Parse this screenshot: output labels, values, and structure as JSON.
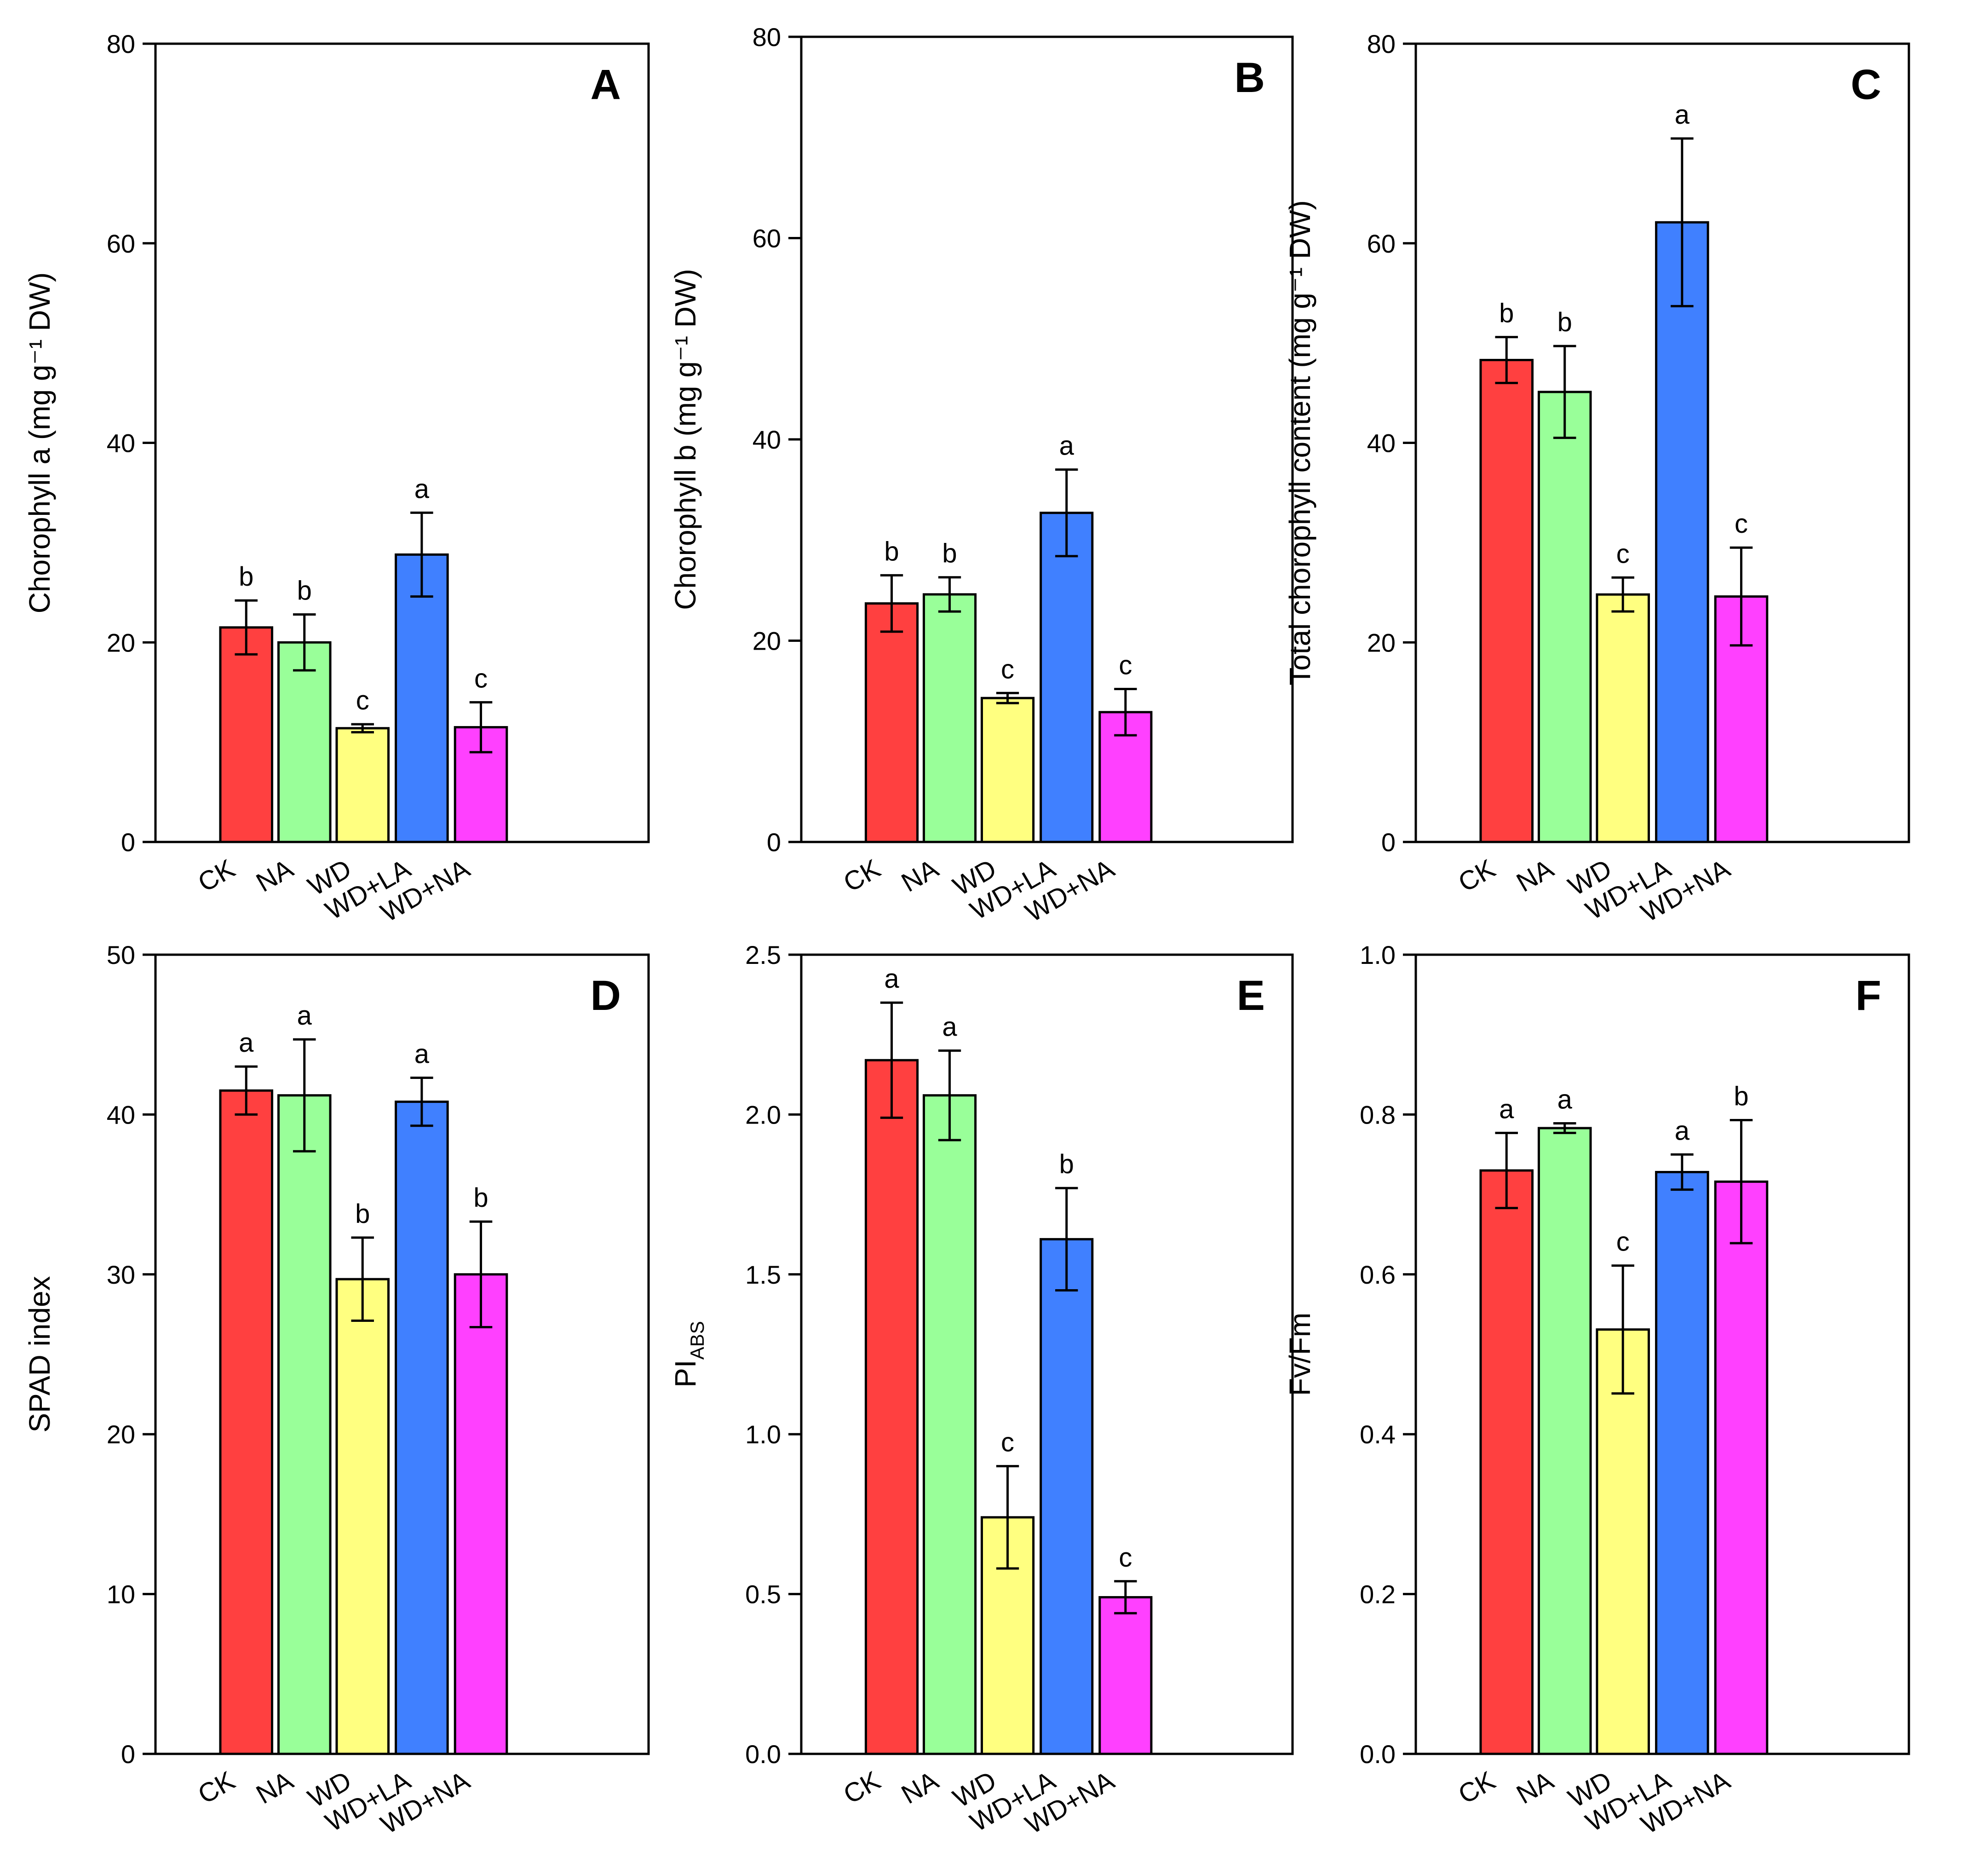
{
  "chart_data": [
    {
      "panel": "A",
      "type": "bar",
      "title": "",
      "xlabel": "",
      "ylabel": "Chorophyll a (mg g⁻¹ DW)",
      "ylim": [
        0,
        80
      ],
      "yticks": [
        "0",
        "20",
        "40",
        "60",
        "80"
      ],
      "categories": [
        "CK",
        "NA",
        "WD",
        "WD+LA",
        "WD+NA"
      ],
      "values": [
        21.5,
        20.0,
        11.4,
        28.8,
        11.5
      ],
      "errors": [
        2.7,
        2.8,
        0.4,
        4.2,
        2.5
      ],
      "letters": [
        "b",
        "b",
        "c",
        "a",
        "c"
      ],
      "grid": false
    },
    {
      "panel": "B",
      "type": "bar",
      "title": "",
      "xlabel": "",
      "ylabel": "Chorophyll b (mg g⁻¹ DW)",
      "ylim": [
        0,
        80
      ],
      "yticks": [
        "0",
        "20",
        "40",
        "60",
        "80"
      ],
      "categories": [
        "CK",
        "NA",
        "WD",
        "WD+LA",
        "WD+NA"
      ],
      "values": [
        23.7,
        24.6,
        14.3,
        32.7,
        12.9
      ],
      "errors": [
        2.8,
        1.7,
        0.5,
        4.3,
        2.3
      ],
      "letters": [
        "b",
        "b",
        "c",
        "a",
        "c"
      ],
      "grid": false
    },
    {
      "panel": "C",
      "type": "bar",
      "title": "",
      "xlabel": "",
      "ylabel": "Total chorophyll content (mg g⁻¹ DW)",
      "ylim": [
        0,
        80
      ],
      "yticks": [
        "0",
        "20",
        "40",
        "60",
        "80"
      ],
      "categories": [
        "CK",
        "NA",
        "WD",
        "WD+LA",
        "WD+NA"
      ],
      "values": [
        48.3,
        45.1,
        24.8,
        62.1,
        24.6
      ],
      "errors": [
        2.3,
        4.6,
        1.7,
        8.4,
        4.9
      ],
      "letters": [
        "b",
        "b",
        "c",
        "a",
        "c"
      ],
      "grid": false
    },
    {
      "panel": "D",
      "type": "bar",
      "title": "",
      "xlabel": "",
      "ylabel": "SPAD index",
      "ylim": [
        0,
        50
      ],
      "yticks": [
        "0",
        "10",
        "20",
        "30",
        "40",
        "50"
      ],
      "categories": [
        "CK",
        "NA",
        "WD",
        "WD+LA",
        "WD+NA"
      ],
      "values": [
        41.5,
        41.2,
        29.7,
        40.8,
        30.0
      ],
      "errors": [
        1.5,
        3.5,
        2.6,
        1.5,
        3.3
      ],
      "letters": [
        "a",
        "a",
        "b",
        "a",
        "b"
      ],
      "grid": false
    },
    {
      "panel": "E",
      "type": "bar",
      "title": "",
      "xlabel": "",
      "ylabel": "PI",
      "ylabel_sub": "ABS",
      "ylim": [
        0,
        2.5
      ],
      "yticks": [
        "0.0",
        "0.5",
        "1.0",
        "1.5",
        "2.0",
        "2.5"
      ],
      "categories": [
        "CK",
        "NA",
        "WD",
        "WD+LA",
        "WD+NA"
      ],
      "values": [
        2.17,
        2.06,
        0.74,
        1.61,
        0.49
      ],
      "errors": [
        0.18,
        0.14,
        0.16,
        0.16,
        0.05
      ],
      "letters": [
        "a",
        "a",
        "c",
        "b",
        "c"
      ],
      "grid": false
    },
    {
      "panel": "F",
      "type": "bar",
      "title": "",
      "xlabel": "",
      "ylabel": "Fv/Fm",
      "ylim": [
        0,
        1.0
      ],
      "yticks": [
        "0.0",
        "0.2",
        "0.4",
        "0.6",
        "0.8",
        "1.0"
      ],
      "categories": [
        "CK",
        "NA",
        "WD",
        "WD+LA",
        "WD+NA"
      ],
      "values": [
        0.73,
        0.783,
        0.531,
        0.728,
        0.716
      ],
      "errors": [
        0.047,
        0.006,
        0.08,
        0.022,
        0.077
      ],
      "letters": [
        "a",
        "a",
        "c",
        "a",
        "b"
      ],
      "grid": false
    }
  ],
  "colors": {
    "CK": "#ff4040",
    "NA": "#99ff99",
    "WD": "#ffff80",
    "WD+LA": "#4080ff",
    "WD+NA": "#ff40ff"
  }
}
